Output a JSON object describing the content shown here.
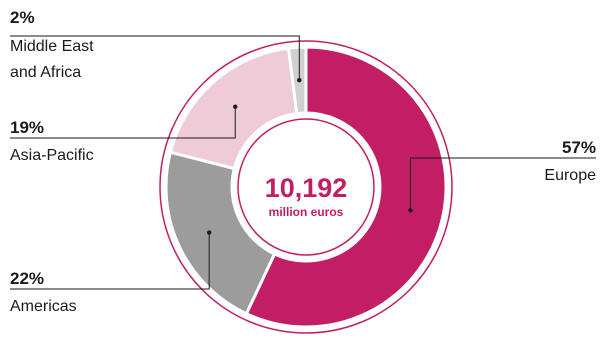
{
  "chart_data": {
    "type": "pie",
    "total": {
      "value": "10,192",
      "unit": "million euros"
    },
    "slices": [
      {
        "label": "Europe",
        "pct_label": "57%",
        "value": 57,
        "color": "#c21e66"
      },
      {
        "label": "Americas",
        "pct_label": "22%",
        "value": 22,
        "color": "#9c9c9c"
      },
      {
        "label": "Asia-Pacific",
        "pct_label": "19%",
        "value": 19,
        "color": "#efcbd8"
      },
      {
        "label": "Middle East and Africa",
        "label_lines": [
          "Middle East",
          "and Africa"
        ],
        "pct_label": "2%",
        "value": 2,
        "color": "#d0d0d0"
      }
    ]
  },
  "colors": {
    "accent": "#c21e66",
    "leader": "#1a1a1a",
    "ring": "#c21e66"
  }
}
